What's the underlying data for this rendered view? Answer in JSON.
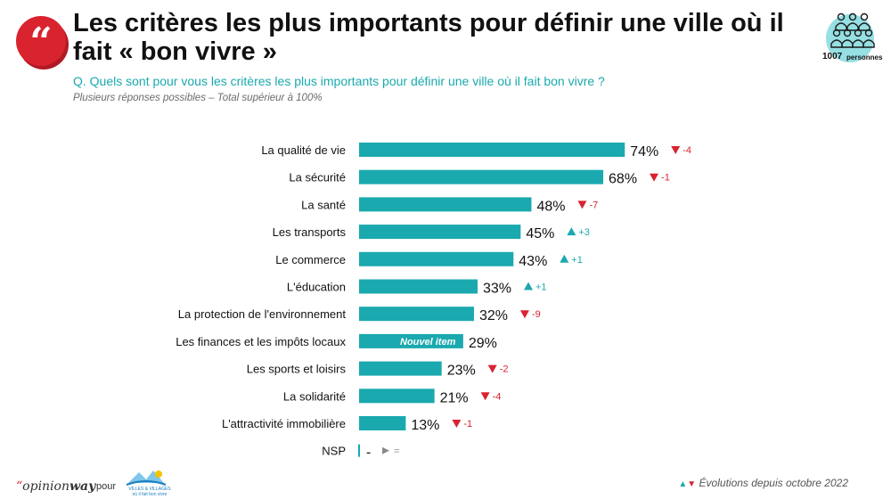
{
  "header": {
    "title": "Les critères les plus importants pour définir une ville où il fait « bon vivre »",
    "question": "Q. Quels sont pour vous les critères les plus importants pour définir une ville où il fait bon vivre ?",
    "note": "Plusieurs réponses possibles – Total supérieur à 100%",
    "quote_icon": "quote-mark-icon"
  },
  "sample": {
    "count": "1007",
    "unit": "personnes",
    "icon": "people-group-icon"
  },
  "chart_data": {
    "type": "bar",
    "orientation": "horizontal",
    "categories": [
      "La qualité de vie",
      "La sécurité",
      "La santé",
      "Les transports",
      "Le commerce",
      "L'éducation",
      "La protection de l'environnement",
      "Les finances et les impôts locaux",
      "Les sports et loisirs",
      "La solidarité",
      "L'attractivité immobilière",
      "NSP"
    ],
    "values": [
      74,
      68,
      48,
      45,
      43,
      33,
      32,
      29,
      23,
      21,
      13,
      0
    ],
    "value_labels": [
      "74%",
      "68%",
      "48%",
      "45%",
      "43%",
      "33%",
      "32%",
      "29%",
      "23%",
      "21%",
      "13%",
      "-"
    ],
    "evolutions": [
      {
        "dir": "down",
        "label": "-4"
      },
      {
        "dir": "down",
        "label": "-1"
      },
      {
        "dir": "down",
        "label": "-7"
      },
      {
        "dir": "up",
        "label": "+3"
      },
      {
        "dir": "up",
        "label": "+1"
      },
      {
        "dir": "up",
        "label": "+1"
      },
      {
        "dir": "down",
        "label": "-9"
      },
      null,
      {
        "dir": "down",
        "label": "-2"
      },
      {
        "dir": "down",
        "label": "-4"
      },
      {
        "dir": "down",
        "label": "-1"
      },
      {
        "dir": "same",
        "label": "="
      }
    ],
    "bar_badges": [
      null,
      null,
      null,
      null,
      null,
      null,
      null,
      "Nouvel item",
      null,
      null,
      null,
      null
    ],
    "xlim": [
      0,
      100
    ],
    "grid": false,
    "colors": {
      "bar": "#1aa9ae",
      "up": "#1aa9ae",
      "down": "#d9232f",
      "same": "#8a8a8a"
    }
  },
  "footer": {
    "legend_up": "▲",
    "legend_down": "▼",
    "legend_text": "Évolutions depuis octobre 2022",
    "opinionway_quote": "“",
    "opinionway_light": "opinion",
    "opinionway_bold": "way",
    "pour": "pour",
    "partner_line1": "VILLES & VILLAGES",
    "partner_line2": "où il fait bon vivre"
  }
}
